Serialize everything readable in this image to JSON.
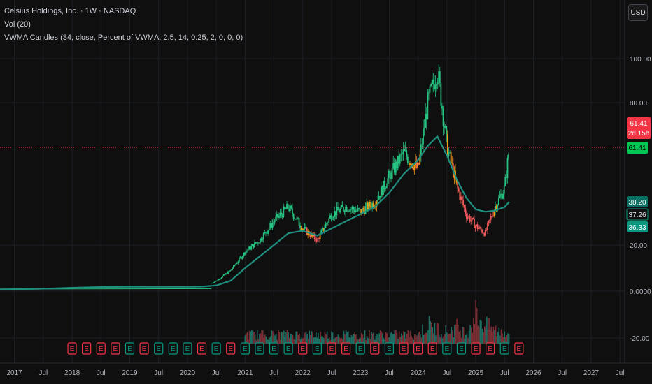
{
  "legend": {
    "symbol_line": "Celsius Holdings, Inc. · 1W · NASDAQ",
    "volume_line": "Vol (20)",
    "indicator_line": "VWMA Candles (34, close, Percent of VWMA, 2.5, 14, 0.25, 2, 0, 0, 0)"
  },
  "toolbar": {
    "currency_label": "USD"
  },
  "price_badges": {
    "last_price": "61.41",
    "countdown": "2d 15h",
    "line_price": "61.41",
    "vwma_a": "38.20",
    "vwma_b": "37.26",
    "vwma_c": "36.33"
  },
  "earnings_marker_label": "E",
  "colors": {
    "background": "#0f0f0f",
    "bull": "#26c281",
    "bear": "#f05a5a",
    "neutral": "#f39c12",
    "vwma": "#1f8f7f",
    "price_line": "#f23645",
    "badge_green": "#089981",
    "badge_red": "#f23645"
  },
  "chart_data": {
    "type": "line",
    "title": "Celsius Holdings, Inc. · 1W · NASDAQ",
    "series": [
      {
        "name": "VWMA Candles",
        "x": [
          "2016-10",
          "2017-06",
          "2018-01",
          "2018-07",
          "2019-01",
          "2019-07",
          "2020-01",
          "2020-04",
          "2020-07",
          "2020-10",
          "2021-01",
          "2021-04",
          "2021-07",
          "2021-10",
          "2022-01",
          "2022-04",
          "2022-07",
          "2022-10",
          "2023-01",
          "2023-04",
          "2023-07",
          "2023-10",
          "2024-01",
          "2024-03",
          "2024-05",
          "2024-07",
          "2024-09",
          "2024-11",
          "2025-01",
          "2025-03",
          "2025-05",
          "2025-07",
          "2025-08"
        ],
        "values": [
          0.8,
          0.9,
          1.0,
          1.0,
          1.0,
          1.0,
          1.0,
          1.4,
          4.5,
          9.0,
          17.0,
          22.0,
          30.0,
          36.0,
          27.0,
          22.0,
          33.0,
          36.0,
          34.0,
          38.0,
          49.0,
          59.0,
          52.0,
          80.0,
          95.0,
          62.0,
          45.0,
          33.0,
          28.0,
          25.0,
          36.0,
          44.0,
          61.41
        ]
      },
      {
        "name": "VWMA",
        "x": [
          "2016-10",
          "2017-06",
          "2018-01",
          "2018-07",
          "2019-01",
          "2019-07",
          "2020-01",
          "2020-04",
          "2020-07",
          "2020-10",
          "2021-01",
          "2021-04",
          "2021-07",
          "2021-10",
          "2022-01",
          "2022-04",
          "2022-07",
          "2022-10",
          "2023-01",
          "2023-04",
          "2023-07",
          "2023-10",
          "2024-01",
          "2024-03",
          "2024-05",
          "2024-07",
          "2024-09",
          "2024-11",
          "2025-01",
          "2025-03",
          "2025-05",
          "2025-07",
          "2025-08"
        ],
        "values": [
          0.8,
          1.0,
          1.5,
          1.8,
          1.9,
          1.9,
          1.9,
          2.0,
          2.5,
          4.5,
          10.0,
          15.0,
          20.0,
          25.0,
          26.0,
          24.0,
          27.0,
          30.0,
          33.0,
          36.0,
          42.0,
          50.0,
          56.0,
          62.0,
          66.0,
          58.0,
          48.0,
          40.0,
          35.0,
          34.0,
          34.5,
          36.0,
          38.2
        ]
      }
    ],
    "volume": {
      "name": "Vol (20)",
      "x": [
        "2024-01",
        "2024-03",
        "2024-05",
        "2024-07",
        "2024-09",
        "2024-11",
        "2025-01",
        "2025-03",
        "2025-05",
        "2025-07"
      ],
      "values": [
        12,
        25,
        20,
        16,
        22,
        14,
        40,
        24,
        18,
        16
      ]
    },
    "y_tick_labels": [
      "100.00",
      "80.00",
      "20.00",
      "0.0000",
      "-20.00"
    ],
    "x_tick_labels": [
      "2017",
      "Jul",
      "2018",
      "Jul",
      "2019",
      "Jul",
      "2020",
      "Jul",
      "2021",
      "Jul",
      "2022",
      "Jul",
      "2023",
      "Jul",
      "2024",
      "Jul",
      "2025",
      "Jul",
      "2026",
      "Jul",
      "2027",
      "Jul"
    ],
    "xlim": [
      "2016-10",
      "2027-08"
    ],
    "ylim": [
      -25,
      105
    ],
    "grid": true,
    "legend": "top-left"
  }
}
